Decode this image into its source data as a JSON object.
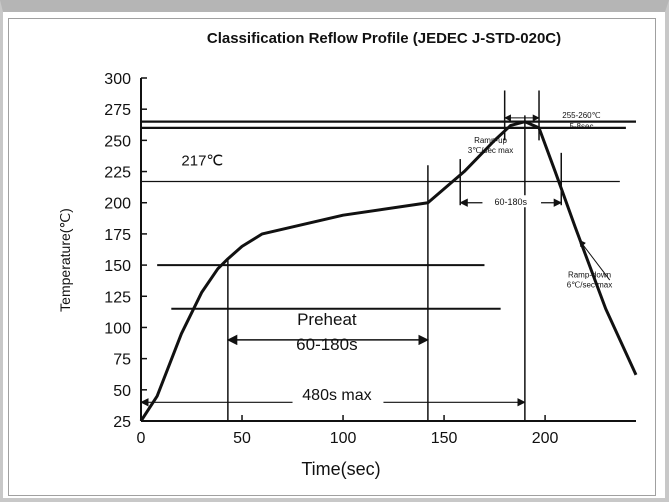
{
  "chart_data": {
    "type": "line",
    "title": "Classification Reflow Profile (JEDEC J-STD-020C)",
    "xlabel": "Time(sec)",
    "ylabel": "Temperature(℃)",
    "xlim": [
      0,
      245
    ],
    "ylim": [
      25,
      300
    ],
    "x_ticks": [
      0,
      50,
      100,
      150,
      200
    ],
    "y_ticks": [
      25,
      50,
      75,
      100,
      125,
      150,
      175,
      200,
      225,
      250,
      275,
      300
    ],
    "grid": false,
    "series": [
      {
        "x": [
          0,
          8,
          20,
          30,
          38,
          43,
          50,
          60,
          100,
          142,
          160,
          175,
          183,
          190,
          197,
          205,
          215,
          230,
          245
        ],
        "y": [
          25,
          45,
          95,
          128,
          147,
          155,
          165,
          175,
          190,
          200,
          225,
          250,
          262,
          265,
          260,
          225,
          180,
          115,
          62
        ]
      }
    ],
    "reference_lines": [
      {
        "y": 265,
        "x0": 0,
        "x1": 245
      },
      {
        "y": 260,
        "x0": 0,
        "x1": 240
      },
      {
        "y": 217,
        "x0": 0,
        "x1": 237
      },
      {
        "y": 150,
        "x0": 8,
        "x1": 170
      },
      {
        "y": 115,
        "x0": 15,
        "x1": 178
      }
    ],
    "vertical_lines": [
      {
        "x": 43,
        "y0": 25,
        "y1": 155
      },
      {
        "x": 142,
        "y0": 25,
        "y1": 230
      },
      {
        "x": 190,
        "y0": 25,
        "y1": 270
      },
      {
        "x": 158,
        "y0": 198,
        "y1": 235
      },
      {
        "x": 208,
        "y0": 198,
        "y1": 240
      },
      {
        "x": 180,
        "y0": 250,
        "y1": 290
      },
      {
        "x": 197,
        "y0": 250,
        "y1": 290
      }
    ],
    "annotations": {
      "temp_217": "217℃",
      "preheat_title": "Preheat",
      "preheat_range": "60-180s",
      "max_time": "480s max",
      "ramp_up": [
        "Ramp-up",
        "3℃/sec max"
      ],
      "time_above": "60-180s",
      "peak_range": [
        "255-260℃",
        "5-8sec"
      ],
      "ramp_down": [
        "Ramp-down",
        "6℃/sec max"
      ]
    }
  }
}
